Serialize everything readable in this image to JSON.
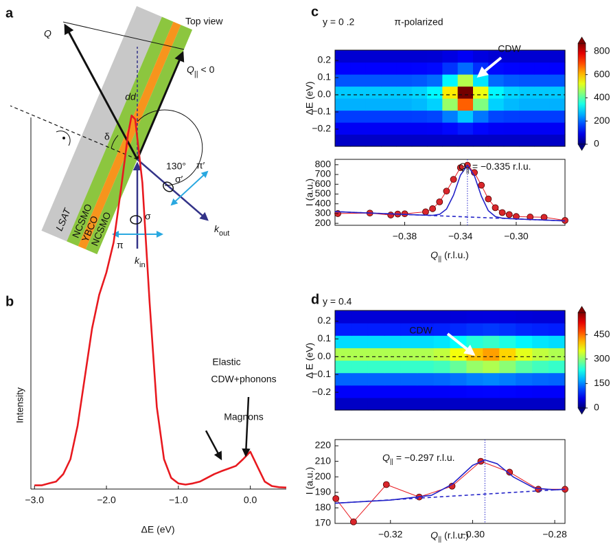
{
  "diagram": {
    "panel_label": "a",
    "title": "Top view",
    "q": "Q",
    "q_par": [
      "Q",
      "||",
      " < 0"
    ],
    "angle": "130°",
    "delta": "δ",
    "layers": [
      "LSAT",
      "NCSMO",
      "YBCO",
      "NCSMO"
    ],
    "sigma": "σ",
    "sigma_prime": "σ′",
    "pi": "π",
    "pi_prime": "π′",
    "k_in": [
      "k",
      "in"
    ],
    "k_out": [
      "k",
      "out"
    ]
  },
  "chart_data": [
    {
      "type": "line",
      "panel_label": "b",
      "xlabel": "ΔE (eV)",
      "ylabel": "Intensity",
      "annotations": [
        "dd",
        "Magnons",
        "Elastic",
        "CDW+phonons"
      ],
      "x": [
        -3.0,
        -2.9,
        -2.8,
        -2.7,
        -2.6,
        -2.5,
        -2.4,
        -2.3,
        -2.2,
        -2.1,
        -2.0,
        -1.9,
        -1.8,
        -1.7,
        -1.65,
        -1.6,
        -1.5,
        -1.4,
        -1.3,
        -1.2,
        -1.1,
        -1.0,
        -0.9,
        -0.8,
        -0.7,
        -0.6,
        -0.5,
        -0.4,
        -0.3,
        -0.2,
        -0.1,
        0.0,
        0.1,
        0.2,
        0.3,
        0.4,
        0.5
      ],
      "values": [
        0.01,
        0.01,
        0.015,
        0.02,
        0.04,
        0.08,
        0.17,
        0.3,
        0.43,
        0.52,
        0.58,
        0.66,
        0.8,
        0.95,
        1.0,
        0.99,
        0.82,
        0.5,
        0.22,
        0.08,
        0.03,
        0.015,
        0.012,
        0.015,
        0.02,
        0.03,
        0.04,
        0.048,
        0.055,
        0.062,
        0.08,
        0.1,
        0.06,
        0.02,
        0.008,
        0.005,
        0.004
      ],
      "color": "#e8191f",
      "xlim": [
        -3.05,
        0.5
      ],
      "ylim": [
        0,
        1.05
      ],
      "xticks": [
        {
          "value": -3,
          "label": "−3.0"
        },
        {
          "value": -2,
          "label": "−2.0"
        },
        {
          "value": -1,
          "label": "−1.0"
        },
        {
          "value": 0,
          "label": "0.0"
        }
      ]
    },
    {
      "type": "heatmap",
      "panel_label": "c",
      "annotation": "y = 0 .2",
      "title": "π-polarized",
      "label": "CDW",
      "ylabel": "ΔE (eV)",
      "colormap": "jet",
      "xlim": [
        -0.43,
        -0.265
      ],
      "ylim": [
        -0.3,
        0.26
      ],
      "xbins": [
        -0.43,
        -0.419,
        -0.408,
        -0.397,
        -0.386,
        -0.375,
        -0.364,
        -0.353,
        -0.342,
        -0.331,
        -0.32,
        -0.309,
        -0.298,
        -0.287,
        -0.276,
        -0.265
      ],
      "ybins": [
        -0.3,
        -0.23,
        -0.16,
        -0.09,
        -0.02,
        0.05,
        0.12,
        0.19,
        0.26
      ],
      "z": [
        [
          60,
          60,
          60,
          60,
          60,
          60,
          60,
          60,
          60,
          60,
          60,
          60,
          60,
          60,
          60
        ],
        [
          100,
          100,
          100,
          100,
          100,
          100,
          102,
          114,
          130,
          112,
          102,
          100,
          100,
          100,
          100
        ],
        [
          160,
          160,
          160,
          160,
          160,
          162,
          168,
          216,
          280,
          210,
          168,
          162,
          160,
          160,
          160
        ],
        [
          260,
          260,
          260,
          260,
          260,
          267,
          288,
          456,
          680,
          435,
          288,
          267,
          260,
          260,
          260
        ],
        [
          280,
          280,
          280,
          280,
          280,
          290,
          320,
          560,
          880,
          530,
          320,
          290,
          280,
          280,
          280
        ],
        [
          180,
          180,
          180,
          180,
          180,
          185,
          200,
          320,
          480,
          305,
          200,
          185,
          180,
          180,
          180
        ],
        [
          110,
          110,
          110,
          110,
          110,
          111,
          116,
          152,
          200,
          148,
          116,
          111,
          110,
          110,
          110
        ],
        [
          70,
          70,
          70,
          70,
          70,
          70,
          72,
          84,
          100,
          82,
          72,
          70,
          70,
          70,
          70
        ]
      ],
      "zlim": [
        0,
        870
      ],
      "zticks": [
        0,
        200,
        400,
        600,
        800
      ],
      "yticks": [
        0.2,
        0.1,
        {
          "value": 0,
          "label": "0.0"
        },
        {
          "value": -0.1,
          "label": "−0.1"
        },
        {
          "value": -0.2,
          "label": "−0.2"
        }
      ],
      "hline": 0
    },
    {
      "type": "line",
      "ylabel": "I (a.u.)",
      "xlabel": [
        "Q",
        "||",
        " (r.l.u.)"
      ],
      "annotation": [
        "Q",
        "||",
        " = −0.335 r.l.u."
      ],
      "vline": -0.335,
      "xlim": [
        -0.43,
        -0.265
      ],
      "ylim": [
        180,
        855
      ],
      "xticks": [
        {
          "value": -0.38,
          "label": "−0.38"
        },
        {
          "value": -0.34,
          "label": "−0.34"
        },
        {
          "value": -0.3,
          "label": "−0.30"
        }
      ],
      "yticks": [
        200,
        300,
        400,
        500,
        600,
        700,
        800
      ],
      "series": [
        {
          "color": "#e8191f",
          "marker": true,
          "x": [
            -0.428,
            -0.405,
            -0.39,
            -0.385,
            -0.38,
            -0.365,
            -0.36,
            -0.355,
            -0.35,
            -0.345,
            -0.34,
            -0.335,
            -0.33,
            -0.325,
            -0.32,
            -0.315,
            -0.31,
            -0.305,
            -0.3,
            -0.29,
            -0.28,
            -0.265
          ],
          "values": [
            300,
            305,
            285,
            295,
            298,
            318,
            350,
            420,
            530,
            650,
            770,
            795,
            720,
            590,
            450,
            360,
            310,
            290,
            270,
            265,
            262,
            230
          ]
        },
        {
          "color": "#2323c8",
          "x": [
            -0.43,
            -0.4,
            -0.37,
            -0.36,
            -0.355,
            -0.35,
            -0.345,
            -0.34,
            -0.335,
            -0.33,
            -0.325,
            -0.32,
            -0.315,
            -0.31,
            -0.3,
            -0.28,
            -0.265
          ],
          "values": [
            320,
            303,
            286,
            282,
            292,
            346,
            489,
            693,
            795,
            687,
            478,
            329,
            269,
            253,
            245,
            234,
            225
          ]
        },
        {
          "color": "#2323c8",
          "dash": true,
          "x": [
            -0.43,
            -0.265
          ],
          "values": [
            320,
            225
          ]
        }
      ]
    },
    {
      "type": "heatmap",
      "panel_label": "d",
      "annotation": "y = 0.4",
      "label": "CDW",
      "ylabel": "Δ E (eV)",
      "colormap": "jet",
      "xlim": [
        -0.3335,
        -0.2775
      ],
      "ylim": [
        -0.3,
        0.26
      ],
      "xbins": [
        -0.3335,
        -0.3295,
        -0.3255,
        -0.3215,
        -0.3175,
        -0.3135,
        -0.3095,
        -0.3055,
        -0.3015,
        -0.2975,
        -0.2935,
        -0.2895,
        -0.2855,
        -0.2815,
        -0.2775
      ],
      "ybins": [
        -0.3,
        -0.23,
        -0.16,
        -0.09,
        -0.02,
        0.05,
        0.12,
        0.19,
        0.26
      ],
      "z": [
        [
          40,
          40,
          40,
          40,
          40,
          40,
          40,
          40,
          40,
          40,
          40,
          40,
          40,
          40
        ],
        [
          70,
          70,
          70,
          70,
          70,
          70,
          70,
          72,
          74,
          75,
          74,
          72,
          70,
          70
        ],
        [
          130,
          130,
          130,
          130,
          130,
          130,
          132,
          138,
          146,
          150,
          144,
          136,
          132,
          130
        ],
        [
          250,
          250,
          250,
          250,
          250,
          250,
          257,
          278,
          306,
          320,
          299,
          271,
          257,
          250
        ],
        [
          320,
          320,
          320,
          320,
          320,
          320,
          330,
          360,
          400,
          420,
          390,
          350,
          330,
          320
        ],
        [
          200,
          200,
          200,
          200,
          200,
          200,
          205,
          220,
          240,
          250,
          235,
          215,
          205,
          200
        ],
        [
          90,
          90,
          90,
          90,
          90,
          90,
          92,
          96,
          102,
          105,
          101,
          95,
          92,
          90
        ],
        [
          50,
          50,
          50,
          50,
          50,
          50,
          50,
          52,
          54,
          55,
          54,
          52,
          50,
          50
        ]
      ],
      "zlim": [
        0,
        585
      ],
      "zticks": [
        0,
        150,
        300,
        450
      ],
      "yticks": [
        0.2,
        0.1,
        {
          "value": 0,
          "label": "0.0"
        },
        {
          "value": -0.1,
          "label": "−0.1"
        },
        {
          "value": -0.2,
          "label": "−0.2"
        }
      ],
      "hline": 0
    },
    {
      "type": "line",
      "ylabel": "I (a.u.)",
      "xlabel": [
        "Q",
        "||",
        " (r.l.u.)"
      ],
      "annotation": [
        "Q",
        "||",
        " = −0.297 r.l.u."
      ],
      "vline": -0.297,
      "xlim": [
        -0.3335,
        -0.2775
      ],
      "ylim": [
        170,
        224
      ],
      "xticks": [
        {
          "value": -0.32,
          "label": "−0.32"
        },
        {
          "value": -0.3,
          "label": "−0.30"
        },
        {
          "value": -0.28,
          "label": "−0.28"
        }
      ],
      "yticks": [
        170,
        180,
        190,
        200,
        210,
        220
      ],
      "series": [
        {
          "color": "#e8191f",
          "marker": true,
          "x": [
            -0.3333,
            -0.329,
            -0.321,
            -0.313,
            -0.305,
            -0.298,
            -0.291,
            -0.284,
            -0.2775
          ],
          "values": [
            186,
            171,
            195,
            187,
            194,
            210,
            203,
            192,
            192
          ]
        },
        {
          "color": "#2323c8",
          "x": [
            -0.3335,
            -0.32,
            -0.31,
            -0.305,
            -0.3,
            -0.297,
            -0.294,
            -0.29,
            -0.285,
            -0.28,
            -0.2775
          ],
          "values": [
            183,
            185,
            188.1,
            195.2,
            207.4,
            210.9,
            208.4,
            199.8,
            192.8,
            191.6,
            192
          ]
        },
        {
          "color": "#2323c8",
          "dash": true,
          "x": [
            -0.3335,
            -0.2775
          ],
          "values": [
            183,
            192
          ]
        }
      ]
    }
  ]
}
